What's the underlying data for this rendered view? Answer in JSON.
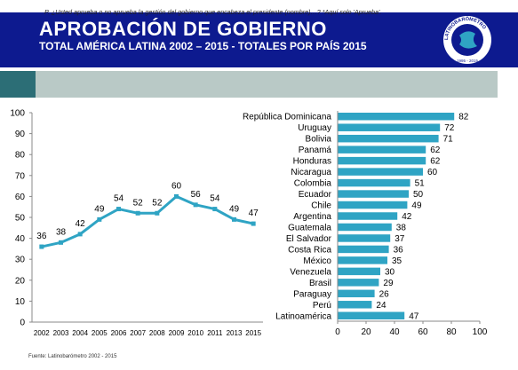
{
  "header": {
    "title": "APROBACIÓN DE GOBIERNO",
    "subtitle": "TOTAL AMÉRICA LATINA 2002 – 2015 - TOTALES POR PAÍS 2015",
    "logo_text": "LATINOBARÓMETRO",
    "logo_years": "1995 - 2015"
  },
  "question": "P. ¿Usted aprueba o no aprueba la gestión del gobierno que encabeza el presidente (nombre)…? *Aquí solo 'Aprueba'.",
  "footer": "Fuente: Latinobarómetro 2002 - 2015",
  "colors": {
    "header_bg": "#0d1a8f",
    "series": "#2fa4c4",
    "question_bg": "#b9c9c6",
    "question_accent": "#2c6e76"
  },
  "chart_data": [
    {
      "type": "line",
      "categories": [
        "2002",
        "2003",
        "2004",
        "2005",
        "2006",
        "2007",
        "2008",
        "2009",
        "2010",
        "2011",
        "2013",
        "2015"
      ],
      "values": [
        36,
        38,
        42,
        49,
        54,
        52,
        52,
        60,
        56,
        54,
        49,
        47
      ],
      "ylim": [
        0,
        100
      ],
      "yticks": [
        0,
        10,
        20,
        30,
        40,
        50,
        60,
        70,
        80,
        90,
        100
      ],
      "grid": false,
      "legend": "none"
    },
    {
      "type": "bar",
      "orientation": "horizontal",
      "categories": [
        "República Dominicana",
        "Uruguay",
        "Bolivia",
        "Panamá",
        "Honduras",
        "Nicaragua",
        "Colombia",
        "Ecuador",
        "Chile",
        "Argentina",
        "Guatemala",
        "El Salvador",
        "Costa Rica",
        "México",
        "Venezuela",
        "Brasil",
        "Paraguay",
        "Perú",
        "Latinoamérica"
      ],
      "values": [
        82,
        72,
        71,
        62,
        62,
        60,
        51,
        50,
        49,
        42,
        38,
        37,
        36,
        35,
        30,
        29,
        26,
        24,
        47
      ],
      "xlim": [
        0,
        100
      ],
      "xticks": [
        0,
        20,
        40,
        60,
        80,
        100
      ],
      "grid": false,
      "legend": "none"
    }
  ]
}
